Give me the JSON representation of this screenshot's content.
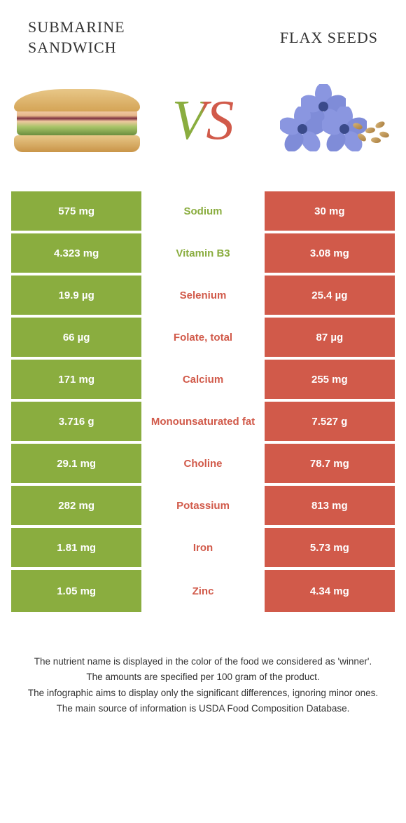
{
  "foods": {
    "left": {
      "name": "Submarine sandwich",
      "color": "#8aad3f"
    },
    "right": {
      "name": "Flax Seeds",
      "color": "#d15a4a"
    }
  },
  "vs_label": "VS",
  "rows": [
    {
      "label": "Sodium",
      "left": "575 mg",
      "right": "30 mg",
      "winner": "left"
    },
    {
      "label": "Vitamin B3",
      "left": "4.323 mg",
      "right": "3.08 mg",
      "winner": "left"
    },
    {
      "label": "Selenium",
      "left": "19.9 µg",
      "right": "25.4 µg",
      "winner": "right"
    },
    {
      "label": "Folate, total",
      "left": "66 µg",
      "right": "87 µg",
      "winner": "right"
    },
    {
      "label": "Calcium",
      "left": "171 mg",
      "right": "255 mg",
      "winner": "right"
    },
    {
      "label": "Monounsaturated fat",
      "left": "3.716 g",
      "right": "7.527 g",
      "winner": "right"
    },
    {
      "label": "Choline",
      "left": "29.1 mg",
      "right": "78.7 mg",
      "winner": "right"
    },
    {
      "label": "Potassium",
      "left": "282 mg",
      "right": "813 mg",
      "winner": "right"
    },
    {
      "label": "Iron",
      "left": "1.81 mg",
      "right": "5.73 mg",
      "winner": "right"
    },
    {
      "label": "Zinc",
      "left": "1.05 mg",
      "right": "4.34 mg",
      "winner": "right"
    }
  ],
  "footer": [
    "The nutrient name is displayed in the color of the food we considered as 'winner'.",
    "The amounts are specified per 100 gram of the product.",
    "The infographic aims to display only the significant differences, ignoring minor ones.",
    "The main source of information is USDA Food Composition Database."
  ],
  "style": {
    "left_cell_bg": "#8aad3f",
    "right_cell_bg": "#d15a4a",
    "mid_bg": "#ffffff",
    "flower_petal": "#8a96e0",
    "flower_petal_dark": "#6a78c8",
    "flower_center": "#3a4a8a"
  }
}
